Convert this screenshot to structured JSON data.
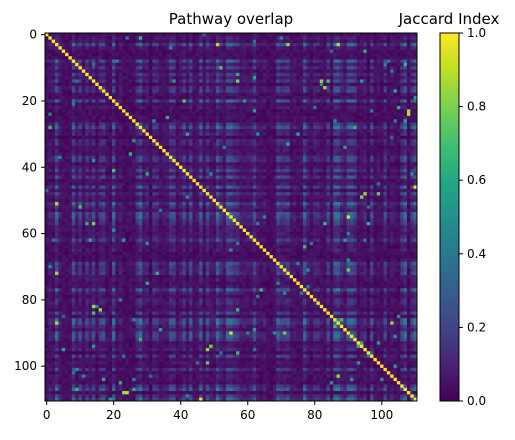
{
  "chart_data": {
    "type": "heatmap",
    "title": "Pathway overlap",
    "matrix_size": 111,
    "x_ticks": [
      0,
      20,
      40,
      60,
      80,
      100
    ],
    "y_ticks": [
      0,
      20,
      40,
      60,
      80,
      100
    ],
    "xlim": [
      -0.5,
      110.5
    ],
    "ylim": [
      110.5,
      -0.5
    ],
    "diagonal_value": 1.0,
    "values_note_visible_bright_cells": [
      {
        "row": 16,
        "col": 83,
        "value": 0.85
      },
      {
        "row": 24,
        "col": 108,
        "value": 0.9
      },
      {
        "row": 48,
        "col": 95,
        "value": 0.85
      },
      {
        "row": 48,
        "col": 99,
        "value": 0.75
      },
      {
        "row": 57,
        "col": 14,
        "value": 0.8
      },
      {
        "row": 57,
        "col": 83,
        "value": 0.65
      },
      {
        "row": 82,
        "col": 14,
        "value": 0.85
      },
      {
        "row": 84,
        "col": 14,
        "value": 0.7
      },
      {
        "row": 94,
        "col": 49,
        "value": 0.8
      },
      {
        "row": 96,
        "col": 57,
        "value": 0.65
      },
      {
        "row": 103,
        "col": 87,
        "value": 0.85
      },
      {
        "row": 108,
        "col": 23,
        "value": 0.85
      }
    ],
    "colorbar": {
      "label": "Jaccard Index",
      "colormap": "viridis",
      "range": [
        0.0,
        1.0
      ],
      "ticks": [
        "0.0",
        "0.2",
        "0.4",
        "0.6",
        "0.8",
        "1.0"
      ]
    }
  }
}
